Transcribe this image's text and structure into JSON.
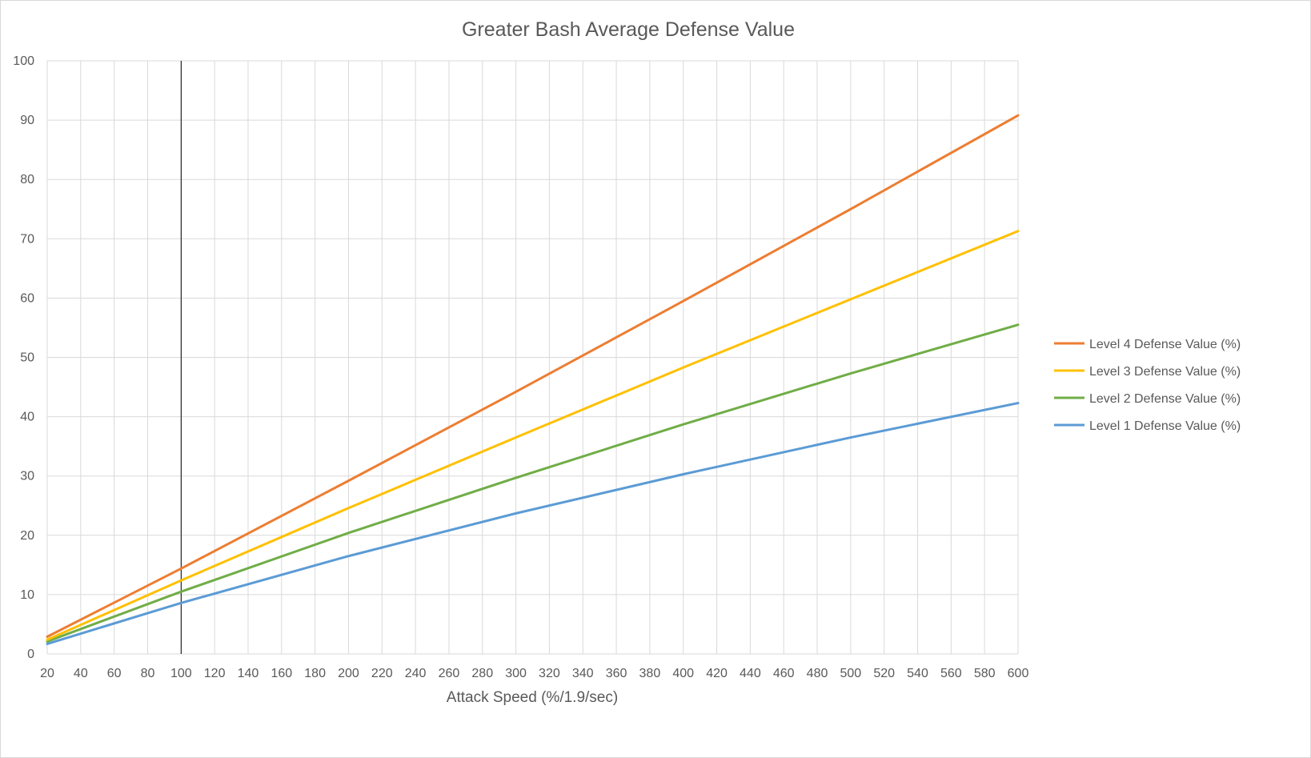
{
  "chart_data": {
    "type": "line",
    "title": "Greater Bash Average Defense Value",
    "xlabel": "Attack Speed (%/1.9/sec)",
    "ylabel": "",
    "xlim": [
      20,
      600
    ],
    "ylim": [
      0,
      100
    ],
    "x_ticks": [
      20,
      40,
      60,
      80,
      100,
      120,
      140,
      160,
      180,
      200,
      220,
      240,
      260,
      280,
      300,
      320,
      340,
      360,
      380,
      400,
      420,
      440,
      460,
      480,
      500,
      520,
      540,
      560,
      580,
      600
    ],
    "y_ticks": [
      0,
      10,
      20,
      30,
      40,
      50,
      60,
      70,
      80,
      90,
      100
    ],
    "grid": true,
    "legend_position": "right",
    "reference_line_x": 100,
    "series": [
      {
        "name": "Level 4 Defense Value (%)",
        "color": "#ED7D31",
        "x": [
          20,
          100,
          200,
          300,
          400,
          500,
          600
        ],
        "values": [
          2.9,
          14.4,
          29.2,
          44.2,
          59.5,
          75.0,
          90.8
        ]
      },
      {
        "name": "Level 3 Defense Value (%)",
        "color": "#FFC000",
        "x": [
          20,
          100,
          200,
          300,
          400,
          500,
          600
        ],
        "values": [
          2.4,
          12.4,
          24.6,
          36.5,
          48.3,
          59.8,
          71.3
        ]
      },
      {
        "name": "Level 2 Defense Value (%)",
        "color": "#70AD47",
        "x": [
          20,
          100,
          200,
          300,
          400,
          500,
          600
        ],
        "values": [
          2.1,
          10.5,
          20.4,
          29.7,
          38.7,
          47.3,
          55.5
        ]
      },
      {
        "name": "Level 1 Defense Value (%)",
        "color": "#5B9BD5",
        "x": [
          20,
          100,
          200,
          300,
          400,
          500,
          600
        ],
        "values": [
          1.7,
          8.6,
          16.5,
          23.7,
          30.3,
          36.5,
          42.3
        ]
      }
    ]
  }
}
